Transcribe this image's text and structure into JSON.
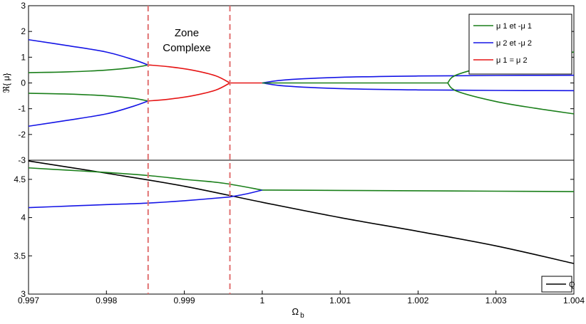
{
  "chart_data": {
    "type": "line",
    "xlabel": "Ω",
    "xlabel_sub": "b",
    "xlim": [
      0.997,
      1.004
    ],
    "x_ticks": [
      "0.997",
      "0.998",
      "0.999",
      "1",
      "1.001",
      "1.002",
      "1.003",
      "1.004"
    ],
    "annotation": [
      "Zone",
      "Complexe"
    ],
    "vertical_lines": [
      0.998535,
      0.999585
    ],
    "legend_placement": "top-right",
    "panels": [
      {
        "id": "top",
        "ylabel": "ℜ{ μ}",
        "ylim": [
          -3,
          3
        ],
        "y_ticks": [
          "3",
          "2",
          "1",
          "0",
          "-1",
          "-2",
          "-3"
        ],
        "legend": [
          {
            "label": "μ 1 et -μ 1",
            "color": "#1a7f1a"
          },
          {
            "label": "μ 2 et -μ 2",
            "color": "#1515e6"
          },
          {
            "label": "μ 1 = μ 2",
            "color": "#e61515"
          }
        ],
        "series": [
          {
            "series_group": "μ1",
            "color": "#1a7f1a",
            "x": [
              0.997,
              0.9975,
              0.998,
              0.99835,
              0.998535
            ],
            "y": [
              0.4,
              0.43,
              0.5,
              0.6,
              0.7
            ]
          },
          {
            "series_group": "μ1",
            "color": "#1a7f1a",
            "x": [
              0.997,
              0.9975,
              0.998,
              0.99835,
              0.998535
            ],
            "y": [
              -0.4,
              -0.43,
              -0.5,
              -0.6,
              -0.7
            ]
          },
          {
            "series_group": "μ2",
            "color": "#1515e6",
            "x": [
              0.997,
              0.9975,
              0.998,
              0.99835,
              0.998535
            ],
            "y": [
              1.68,
              1.45,
              1.2,
              0.9,
              0.7
            ]
          },
          {
            "series_group": "μ2",
            "color": "#1515e6",
            "x": [
              0.997,
              0.9975,
              0.998,
              0.99835,
              0.998535
            ],
            "y": [
              -1.68,
              -1.45,
              -1.2,
              -0.9,
              -0.7
            ]
          },
          {
            "series_group": "μ1=μ2",
            "color": "#e61515",
            "x": [
              0.998535,
              0.9988,
              0.9991,
              0.9994,
              0.999585
            ],
            "y": [
              0.7,
              0.63,
              0.5,
              0.28,
              0.0
            ]
          },
          {
            "series_group": "μ1=μ2",
            "color": "#e61515",
            "x": [
              0.998535,
              0.9988,
              0.9991,
              0.9994,
              0.999585
            ],
            "y": [
              -0.7,
              -0.63,
              -0.5,
              -0.28,
              0.0
            ]
          },
          {
            "series_group": "μ1=μ2",
            "color": "#e61515",
            "x": [
              0.999585,
              1.0
            ],
            "y": [
              0.0,
              0.0
            ]
          },
          {
            "series_group": "μ2",
            "color": "#1515e6",
            "x": [
              1.0,
              1.0003,
              1.001,
              1.002,
              1.003,
              1.004
            ],
            "y": [
              0.0,
              0.12,
              0.22,
              0.27,
              0.29,
              0.3
            ]
          },
          {
            "series_group": "μ2",
            "color": "#1515e6",
            "x": [
              1.0,
              1.0003,
              1.001,
              1.002,
              1.003,
              1.004
            ],
            "y": [
              0.0,
              -0.12,
              -0.22,
              -0.27,
              -0.29,
              -0.3
            ]
          },
          {
            "series_group": "μ1",
            "color": "#1a7f1a",
            "x": [
              1.0,
              1.00238
            ],
            "y": [
              0.0,
              0.0
            ]
          },
          {
            "series_group": "μ1",
            "color": "#1a7f1a",
            "x": [
              1.00238,
              1.0025,
              1.003,
              1.0035,
              1.004
            ],
            "y": [
              0.0,
              0.32,
              0.72,
              0.98,
              1.2
            ]
          },
          {
            "series_group": "μ1",
            "color": "#1a7f1a",
            "x": [
              1.00238,
              1.0025,
              1.003,
              1.0035,
              1.004
            ],
            "y": [
              0.0,
              -0.32,
              -0.72,
              -0.98,
              -1.2
            ]
          }
        ]
      },
      {
        "id": "bottom",
        "ylim": [
          3,
          4.75
        ],
        "y_ticks": [
          "4.5",
          "4",
          "3.5",
          "3"
        ],
        "legend": [
          {
            "label": "Q",
            "color": "#000000"
          }
        ],
        "series": [
          {
            "series_group": "Q",
            "color": "#000000",
            "x": [
              0.997,
              0.998,
              0.999,
              1.0,
              1.001,
              1.002,
              1.003,
              1.004
            ],
            "y": [
              4.74,
              4.58,
              4.41,
              4.2,
              4.0,
              3.82,
              3.63,
              3.4
            ]
          },
          {
            "series_group": "μ1",
            "color": "#1a7f1a",
            "x": [
              0.997,
              0.9975,
              0.998,
              0.998535,
              0.999,
              0.9995,
              1.0
            ],
            "y": [
              4.65,
              4.62,
              4.59,
              4.55,
              4.5,
              4.45,
              4.36
            ]
          },
          {
            "series_group": "μ2",
            "color": "#1515e6",
            "x": [
              0.997,
              0.9975,
              0.998,
              0.998535,
              0.999,
              0.999585
            ],
            "y": [
              4.13,
              4.15,
              4.17,
              4.19,
              4.22,
              4.27
            ]
          },
          {
            "series_group": "μ2",
            "color": "#1515e6",
            "x": [
              0.999585,
              0.9998,
              1.0
            ],
            "y": [
              4.27,
              4.31,
              4.36
            ]
          },
          {
            "series_group": "μ1",
            "color": "#1a7f1a",
            "x": [
              1.0,
              1.001,
              1.002,
              1.003,
              1.004
            ],
            "y": [
              4.36,
              4.355,
              4.35,
              4.345,
              4.34
            ]
          }
        ]
      }
    ]
  }
}
